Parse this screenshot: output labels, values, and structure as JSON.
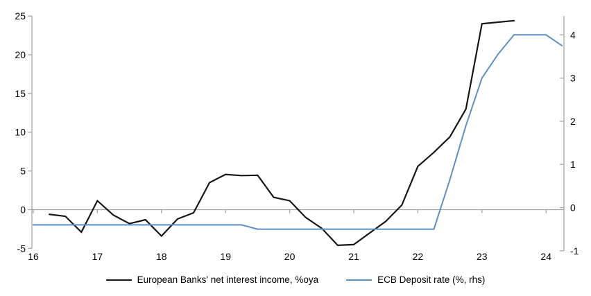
{
  "chart_data": {
    "type": "line",
    "title": "",
    "grid": "zero-line-only",
    "legend_position": "bottom",
    "x_axis": {
      "ticks": [
        16,
        17,
        18,
        19,
        20,
        21,
        22,
        23,
        24
      ],
      "range": [
        16,
        24.28
      ]
    },
    "left_axis": {
      "ticks": [
        25,
        20,
        15,
        10,
        5,
        0,
        -5
      ],
      "range": [
        -5,
        25
      ]
    },
    "right_axis": {
      "ticks": [
        4,
        3,
        2,
        1,
        0,
        -1
      ],
      "range": [
        -1,
        4.45
      ]
    },
    "series": [
      {
        "name": "European Banks' net interest income, %oya",
        "axis": "left",
        "color": "#161616",
        "points": [
          [
            16.25,
            -0.6
          ],
          [
            16.5,
            -0.85
          ],
          [
            16.75,
            -2.9
          ],
          [
            17.0,
            1.15
          ],
          [
            17.25,
            -0.7
          ],
          [
            17.5,
            -1.8
          ],
          [
            17.75,
            -1.3
          ],
          [
            18.0,
            -3.4
          ],
          [
            18.25,
            -1.2
          ],
          [
            18.5,
            -0.4
          ],
          [
            18.75,
            3.5
          ],
          [
            19.0,
            4.55
          ],
          [
            19.25,
            4.4
          ],
          [
            19.5,
            4.45
          ],
          [
            19.75,
            1.6
          ],
          [
            20.0,
            1.15
          ],
          [
            20.25,
            -1.0
          ],
          [
            20.5,
            -2.4
          ],
          [
            20.75,
            -4.6
          ],
          [
            21.0,
            -4.5
          ],
          [
            21.25,
            -3.0
          ],
          [
            21.5,
            -1.5
          ],
          [
            21.75,
            0.6
          ],
          [
            22.0,
            5.6
          ],
          [
            22.25,
            7.4
          ],
          [
            22.5,
            9.4
          ],
          [
            22.75,
            13.0
          ],
          [
            23.0,
            24.0
          ],
          [
            23.25,
            24.2
          ],
          [
            23.5,
            24.4
          ]
        ]
      },
      {
        "name": "ECB Deposit rate (%, rhs)",
        "axis": "right",
        "color": "#5b8fc8",
        "points": [
          [
            16.0,
            -0.4
          ],
          [
            19.25,
            -0.4
          ],
          [
            19.5,
            -0.5
          ],
          [
            22.25,
            -0.5
          ],
          [
            22.5,
            0.65
          ],
          [
            22.75,
            1.9
          ],
          [
            23.0,
            3.0
          ],
          [
            23.25,
            3.55
          ],
          [
            23.5,
            4.0
          ],
          [
            24.0,
            4.0
          ],
          [
            24.25,
            3.75
          ]
        ]
      }
    ]
  },
  "colors": {
    "axis": "#a6a6a6",
    "zero_line": "#a0a0a0",
    "background": "#ffffff",
    "text": "#000000"
  }
}
